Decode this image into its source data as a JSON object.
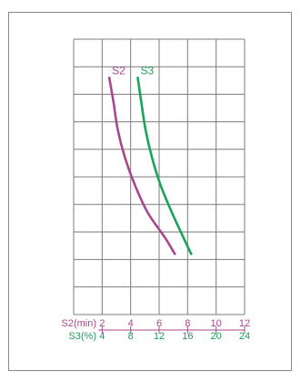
{
  "chart_data": {
    "type": "line",
    "title": "",
    "xlabel": "",
    "ylabel": "",
    "grid": true,
    "legend": "inline-labels",
    "axes": {
      "s2": {
        "label": "S2(min)",
        "ticks": [
          2,
          4,
          6,
          8,
          10,
          12
        ],
        "tick_labels": [
          "2",
          "4",
          "6",
          "8",
          "10",
          "12"
        ],
        "range": [
          0,
          12
        ],
        "color": "#a8478f"
      },
      "s3": {
        "label": "S3(%)",
        "ticks": [
          4,
          8,
          12,
          16,
          20,
          24
        ],
        "tick_labels": [
          "4",
          "8",
          "12",
          "16",
          "20",
          "24"
        ],
        "range": [
          0,
          24
        ],
        "color": "#1aa35a"
      }
    },
    "y_rows": 10,
    "series": [
      {
        "name": "S2",
        "axis": "s2",
        "color": "#a8478f",
        "points": [
          [
            2.5,
            8.6
          ],
          [
            2.8,
            7.7
          ],
          [
            3.1,
            6.7
          ],
          [
            3.6,
            5.7
          ],
          [
            4.3,
            4.7
          ],
          [
            5.2,
            3.7
          ],
          [
            6.4,
            2.8
          ],
          [
            7.1,
            2.2
          ]
        ]
      },
      {
        "name": "S3",
        "axis": "s3",
        "color": "#1aa35a",
        "points": [
          [
            9.0,
            8.6
          ],
          [
            9.5,
            7.7
          ],
          [
            10.1,
            6.7
          ],
          [
            11.0,
            5.7
          ],
          [
            12.2,
            4.7
          ],
          [
            13.8,
            3.7
          ],
          [
            15.4,
            2.8
          ],
          [
            16.5,
            2.2
          ]
        ]
      }
    ]
  }
}
